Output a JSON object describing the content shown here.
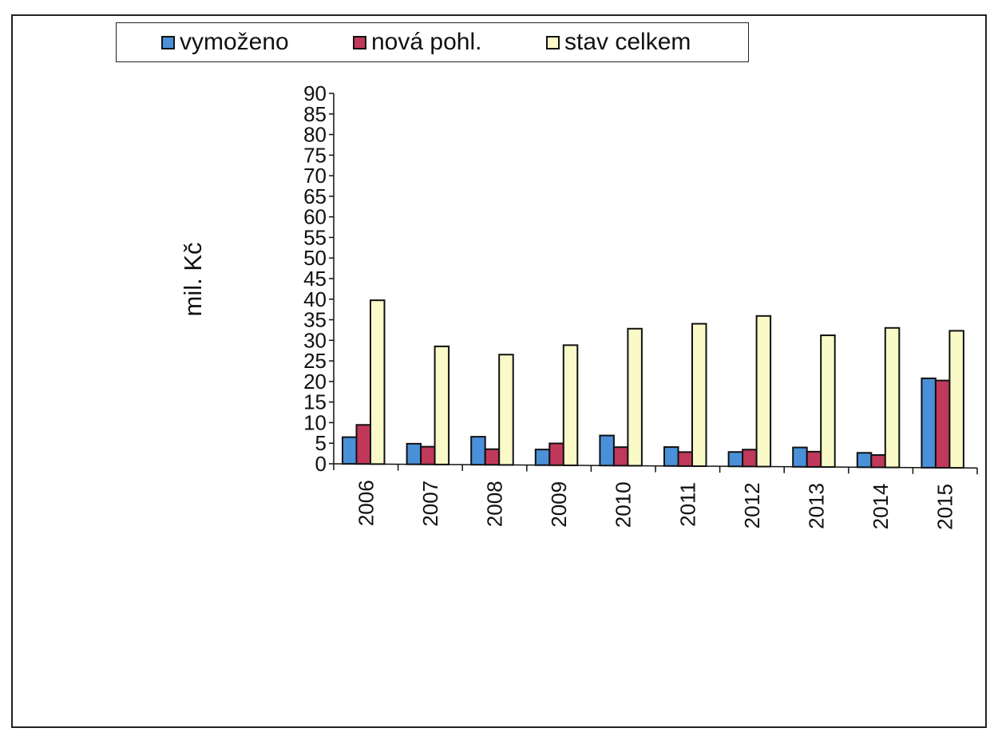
{
  "chart_data": {
    "type": "bar",
    "title": "",
    "xlabel": "",
    "ylabel": "mil. Kč",
    "ylim": [
      0,
      90
    ],
    "ytick_step": 5,
    "yticks": [
      "0",
      "5",
      "10",
      "15",
      "20",
      "25",
      "30",
      "35",
      "40",
      "45",
      "50",
      "55",
      "60",
      "65",
      "70",
      "75",
      "80",
      "85",
      "90"
    ],
    "categories": [
      "2006",
      "2007",
      "2008",
      "2009",
      "2010",
      "2011",
      "2012",
      "2013",
      "2014",
      "2015"
    ],
    "series": [
      {
        "name": "vymoženo",
        "color": "#4a90d9",
        "values": [
          6.5,
          5.0,
          6.8,
          3.8,
          7.3,
          4.6,
          3.5,
          4.7,
          3.5,
          21.7
        ]
      },
      {
        "name": "nová pohl.",
        "color": "#c0395a",
        "values": [
          9.5,
          4.3,
          3.8,
          5.3,
          4.5,
          3.4,
          4.1,
          3.7,
          3.0,
          21.2
        ]
      },
      {
        "name": "stav celkem",
        "color": "#fafac8",
        "values": [
          39.8,
          28.7,
          26.8,
          29.2,
          33.3,
          34.6,
          36.6,
          32.0,
          33.9,
          33.3
        ]
      }
    ],
    "grid": false,
    "legend_position": "top"
  }
}
